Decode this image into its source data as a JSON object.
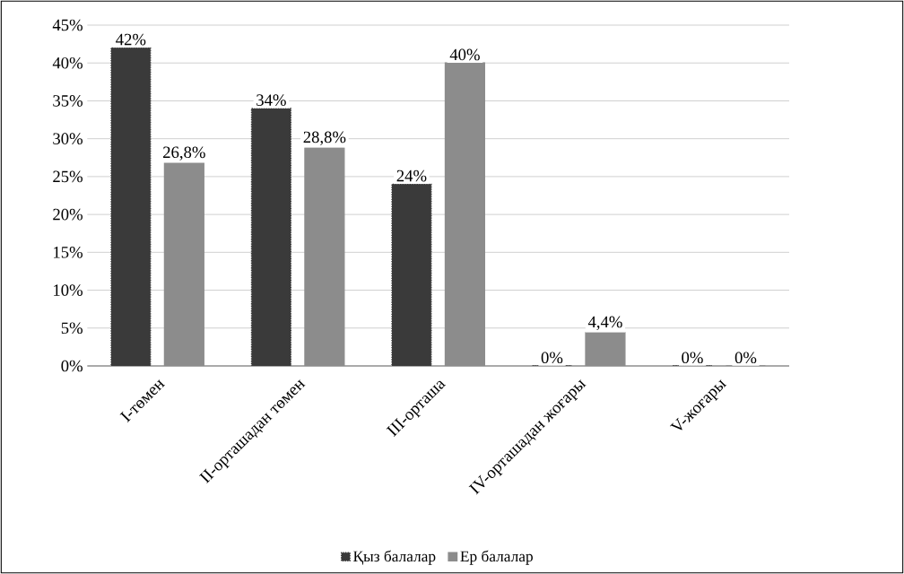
{
  "chart_data": {
    "type": "bar",
    "categories": [
      "I-төмен",
      "II-орташадан төмен",
      "III-орташа",
      "IV-орташадан жоғары",
      "V-жоғары"
    ],
    "series": [
      {
        "name": "Қыз балалар",
        "color": "#3a3a3a",
        "values": [
          42,
          34,
          24,
          0,
          0
        ],
        "value_labels": [
          "42%",
          "34%",
          "24%",
          "0%",
          "0%"
        ]
      },
      {
        "name": "Ер балалар",
        "color": "#8c8c8c",
        "values": [
          26.8,
          28.8,
          40,
          4.4,
          0
        ],
        "value_labels": [
          "26,8%",
          "28,8%",
          "40%",
          "4,4%",
          "0%"
        ]
      }
    ],
    "ylim": [
      0,
      45
    ],
    "yticks": [
      {
        "value": 0,
        "label": "0%"
      },
      {
        "value": 5,
        "label": "5%"
      },
      {
        "value": 10,
        "label": "10%"
      },
      {
        "value": 15,
        "label": "15%"
      },
      {
        "value": 20,
        "label": "20%"
      },
      {
        "value": 25,
        "label": "25%"
      },
      {
        "value": 30,
        "label": "30%"
      },
      {
        "value": 35,
        "label": "35%"
      },
      {
        "value": 40,
        "label": "40%"
      },
      {
        "value": 45,
        "label": "45%"
      }
    ],
    "grid": "y",
    "legend": "bottom"
  }
}
